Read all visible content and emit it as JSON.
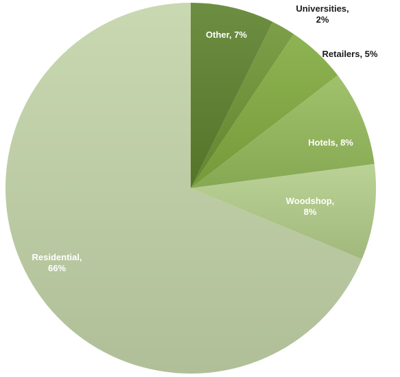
{
  "chart_data": {
    "type": "pie",
    "title": "",
    "start_angle_deg": 0,
    "direction": "clockwise",
    "slices": [
      {
        "label": "Other",
        "value": 7,
        "display": [
          "Other, 7%"
        ],
        "color": "#5d822d",
        "label_color": "#ffffff"
      },
      {
        "label": "Universities",
        "value": 2,
        "display": [
          "Universities,",
          "2%"
        ],
        "color": "#6e9434",
        "label_color": "#1a1a1a"
      },
      {
        "label": "Retailers",
        "value": 5,
        "display": [
          "Retailers, 5%"
        ],
        "color": "#82ab3f",
        "label_color": "#1a1a1a"
      },
      {
        "label": "Hotels",
        "value": 8,
        "display": [
          "Hotels, 8%"
        ],
        "color": "#96bb5c",
        "label_color": "#ffffff"
      },
      {
        "label": "Woodshop",
        "value": 8,
        "display": [
          "Woodshop,",
          "8%"
        ],
        "color": "#b3cd8a",
        "label_color": "#ffffff"
      },
      {
        "label": "Residential",
        "value": 66,
        "display": [
          "Residential,",
          "66%"
        ],
        "color": "#c3d4a8",
        "label_color": "#ffffff"
      }
    ]
  }
}
